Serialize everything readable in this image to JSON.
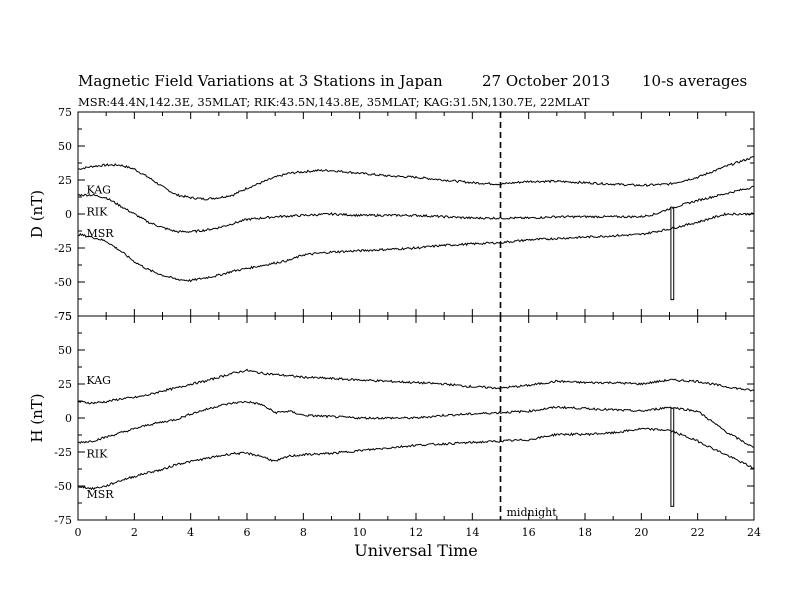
{
  "title": {
    "main": "Magnetic Field Variations at 3 Stations in Japan",
    "date": "27 October 2013",
    "avg": "10-s averages"
  },
  "subtitle": "MSR:44.4N,142.3E, 35MLAT;  RIK:43.5N,143.8E, 35MLAT;  KAG:31.5N,130.7E, 22MLAT",
  "chart_data": {
    "type": "line",
    "xlabel": "Universal Time",
    "xlim": [
      0,
      24
    ],
    "x_ticks": [
      "0",
      "2",
      "4",
      "6",
      "8",
      "10",
      "12",
      "14",
      "16",
      "18",
      "20",
      "22",
      "24"
    ],
    "midnight": {
      "x": 15,
      "label": "midnight"
    },
    "panels": [
      {
        "ylabel": "D (nT)",
        "ylim": [
          -75,
          75
        ],
        "y_ticks": [
          "75",
          "50",
          "25",
          "0",
          "-25",
          "-50",
          "-75"
        ],
        "series": [
          {
            "name": "KAG",
            "label_at": [
              0.3,
              18
            ],
            "x": [
              0,
              0.5,
              1,
              1.5,
              2,
              2.5,
              3,
              3.5,
              4,
              4.5,
              5,
              5.5,
              6,
              6.5,
              7,
              7.5,
              8,
              8.5,
              9,
              9.5,
              10,
              11,
              12,
              13,
              14,
              15,
              16,
              17,
              18,
              19,
              20,
              21,
              22,
              23,
              24
            ],
            "y": [
              33,
              35,
              36,
              36,
              33,
              27,
              20,
              14,
              12,
              11,
              12,
              14,
              19,
              23,
              27,
              30,
              31,
              32,
              32,
              31,
              30,
              28,
              27,
              25,
              23,
              22,
              24,
              24,
              23,
              22,
              21,
              22,
              27,
              35,
              42
            ]
          },
          {
            "name": "RIK",
            "label_at": [
              0.3,
              2
            ],
            "x": [
              0,
              0.5,
              1,
              1.5,
              2,
              2.5,
              3,
              3.5,
              4,
              4.5,
              5,
              5.5,
              6,
              6.5,
              7,
              8,
              9,
              10,
              11,
              12,
              13,
              14,
              15,
              16,
              17,
              18,
              19,
              20,
              20.5,
              21,
              22,
              23,
              24
            ],
            "y": [
              14,
              14,
              12,
              6,
              0,
              -6,
              -10,
              -13,
              -13,
              -12,
              -10,
              -7,
              -4,
              -3,
              -2,
              -1,
              0,
              -1,
              -1,
              -1,
              -2,
              -3,
              -3,
              -3,
              -2,
              -2,
              -2,
              -2,
              0,
              4,
              10,
              15,
              20
            ],
            "dropout": {
              "x": [
                21.05,
                21.15
              ],
              "y": -63
            }
          },
          {
            "name": "MSR",
            "label_at": [
              0.3,
              -14
            ],
            "x": [
              0,
              0.5,
              1,
              1.5,
              2,
              2.5,
              3,
              3.5,
              4,
              4.5,
              5,
              5.5,
              6,
              6.5,
              7,
              7.5,
              8,
              9,
              10,
              11,
              12,
              13,
              14,
              15,
              16,
              17,
              18,
              19,
              20,
              21,
              22,
              23,
              24
            ],
            "y": [
              -15,
              -17,
              -20,
              -27,
              -35,
              -41,
              -45,
              -48,
              -49,
              -47,
              -45,
              -42,
              -40,
              -38,
              -36,
              -34,
              -30,
              -28,
              -27,
              -26,
              -25,
              -23,
              -22,
              -21,
              -19,
              -18,
              -17,
              -16,
              -15,
              -11,
              -6,
              0,
              0
            ]
          }
        ]
      },
      {
        "ylabel": "H (nT)",
        "ylim": [
          -75,
          75
        ],
        "y_ticks": [
          "75",
          "50",
          "25",
          "0",
          "-25",
          "-50",
          "-75"
        ],
        "series": [
          {
            "name": "KAG",
            "label_at": [
              0.3,
              28
            ],
            "x": [
              0,
              0.5,
              1,
              1.5,
              2,
              2.5,
              3,
              3.5,
              4,
              4.5,
              5,
              5.5,
              6,
              6.5,
              7,
              7.5,
              8,
              9,
              10,
              11,
              12,
              13,
              14,
              15,
              16,
              17,
              18,
              19,
              20,
              21,
              22,
              23,
              24
            ],
            "y": [
              12,
              11,
              12,
              14,
              15,
              17,
              20,
              22,
              25,
              27,
              30,
              33,
              35,
              33,
              32,
              31,
              30,
              29,
              28,
              27,
              26,
              25,
              23,
              22,
              24,
              27,
              26,
              26,
              25,
              28,
              27,
              23,
              20
            ]
          },
          {
            "name": "RIK",
            "label_at": [
              0.3,
              -26
            ],
            "x": [
              0,
              0.5,
              1,
              1.5,
              2,
              2.5,
              3,
              3.5,
              4,
              4.5,
              5,
              5.5,
              6,
              6.5,
              7,
              7.5,
              8,
              9,
              10,
              11,
              12,
              13,
              14,
              15,
              16,
              17,
              18,
              19,
              20,
              21,
              22,
              23,
              24
            ],
            "y": [
              -18,
              -17,
              -14,
              -11,
              -8,
              -5,
              -3,
              -1,
              3,
              6,
              9,
              11,
              12,
              10,
              4,
              5,
              2,
              1,
              0,
              0,
              0,
              2,
              3,
              4,
              5,
              8,
              7,
              6,
              5,
              8,
              5,
              -10,
              -22
            ],
            "dropout": {
              "x": [
                21.05,
                21.15
              ],
              "y": -65
            }
          },
          {
            "name": "MSR",
            "label_at": [
              0.3,
              -56
            ],
            "x": [
              0,
              0.5,
              1,
              1.5,
              2,
              2.5,
              3,
              3.5,
              4,
              4.5,
              5,
              5.5,
              6,
              6.5,
              7,
              7.5,
              8,
              9,
              10,
              11,
              12,
              13,
              14,
              15,
              16,
              17,
              18,
              19,
              20,
              21,
              22,
              23,
              24
            ],
            "y": [
              -50,
              -52,
              -50,
              -46,
              -43,
              -40,
              -38,
              -34,
              -32,
              -30,
              -28,
              -26,
              -26,
              -28,
              -32,
              -28,
              -27,
              -26,
              -24,
              -22,
              -20,
              -19,
              -18,
              -17,
              -16,
              -12,
              -12,
              -11,
              -8,
              -9,
              -17,
              -27,
              -37
            ]
          }
        ]
      }
    ]
  }
}
